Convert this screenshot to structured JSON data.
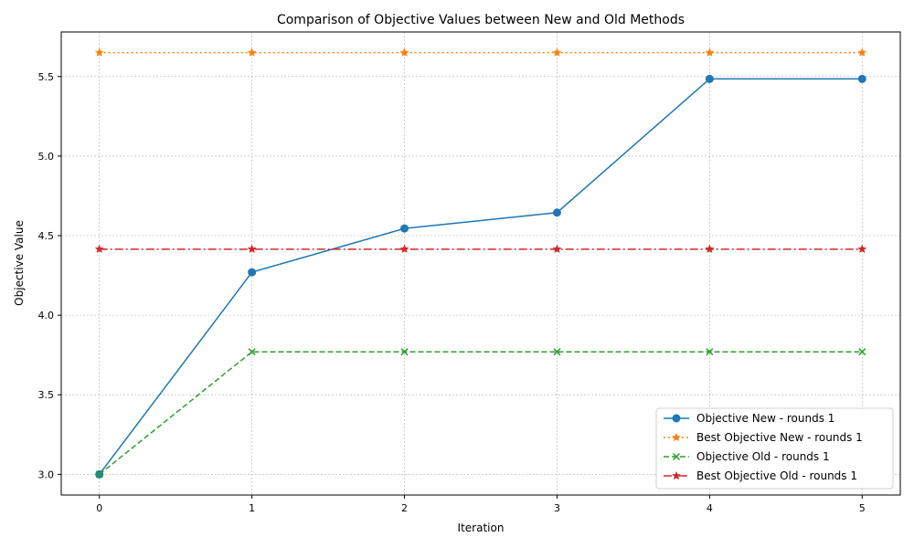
{
  "chart_data": {
    "type": "line",
    "title": "Comparison of Objective Values between New and Old Methods",
    "xlabel": "Iteration",
    "ylabel": "Objective Value",
    "x": [
      0,
      1,
      2,
      3,
      4,
      5
    ],
    "xlim": [
      -0.25,
      5.25
    ],
    "ylim": [
      2.87,
      5.78
    ],
    "xticks": [
      0,
      1,
      2,
      3,
      4,
      5
    ],
    "yticks": [
      3.0,
      3.5,
      4.0,
      4.5,
      5.0,
      5.5
    ],
    "ytick_labels": [
      "3.0",
      "3.5",
      "4.0",
      "4.5",
      "5.0",
      "5.5"
    ],
    "grid": true,
    "legend_position": "lower-right",
    "series": [
      {
        "name": "Objective New - rounds 1",
        "values": [
          3.0,
          4.27,
          4.545,
          4.645,
          5.485,
          5.485
        ],
        "color": "#1f77b4",
        "linestyle": "solid",
        "marker": "circle"
      },
      {
        "name": "Best Objective New - rounds 1",
        "values": [
          5.65,
          5.65,
          5.65,
          5.65,
          5.65,
          5.65
        ],
        "color": "#ff7f0e",
        "linestyle": "dotted",
        "marker": "star"
      },
      {
        "name": "Objective Old - rounds 1",
        "values": [
          3.0,
          3.77,
          3.77,
          3.77,
          3.77,
          3.77
        ],
        "color": "#2ca02c",
        "linestyle": "dashed",
        "marker": "x"
      },
      {
        "name": "Best Objective Old - rounds 1",
        "values": [
          4.415,
          4.415,
          4.415,
          4.415,
          4.415,
          4.415
        ],
        "color": "#d62728",
        "linestyle": "dashdot",
        "marker": "star"
      }
    ]
  }
}
